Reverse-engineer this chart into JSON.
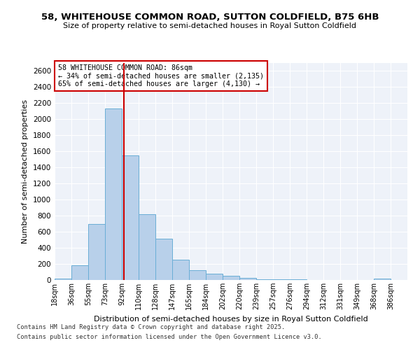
{
  "title": "58, WHITEHOUSE COMMON ROAD, SUTTON COLDFIELD, B75 6HB",
  "subtitle": "Size of property relative to semi-detached houses in Royal Sutton Coldfield",
  "xlabel": "Distribution of semi-detached houses by size in Royal Sutton Coldfield",
  "ylabel": "Number of semi-detached properties",
  "footer1": "Contains HM Land Registry data © Crown copyright and database right 2025.",
  "footer2": "Contains public sector information licensed under the Open Government Licence v3.0.",
  "annotation_title": "58 WHITEHOUSE COMMON ROAD: 86sqm",
  "annotation_line1": "← 34% of semi-detached houses are smaller (2,135)",
  "annotation_line2": "65% of semi-detached houses are larger (4,130) →",
  "categories": [
    "18sqm",
    "36sqm",
    "55sqm",
    "73sqm",
    "92sqm",
    "110sqm",
    "128sqm",
    "147sqm",
    "165sqm",
    "184sqm",
    "202sqm",
    "220sqm",
    "239sqm",
    "257sqm",
    "276sqm",
    "294sqm",
    "312sqm",
    "331sqm",
    "349sqm",
    "368sqm",
    "386sqm"
  ],
  "values": [
    20,
    180,
    700,
    2130,
    1550,
    820,
    510,
    250,
    125,
    80,
    55,
    30,
    10,
    5,
    5,
    2,
    2,
    0,
    0,
    15,
    0
  ],
  "bar_color": "#b8d0ea",
  "bar_edge_color": "#6aaed6",
  "vline_color": "#cc0000",
  "vline_x": 92,
  "annotation_box_color": "#cc0000",
  "ylim": [
    0,
    2700
  ],
  "yticks": [
    0,
    200,
    400,
    600,
    800,
    1000,
    1200,
    1400,
    1600,
    1800,
    2000,
    2200,
    2400,
    2600
  ],
  "background_color": "#eef2f9",
  "fig_background": "#ffffff",
  "title_fontsize": 9.5,
  "subtitle_fontsize": 8,
  "ylabel_fontsize": 8,
  "xlabel_fontsize": 8
}
